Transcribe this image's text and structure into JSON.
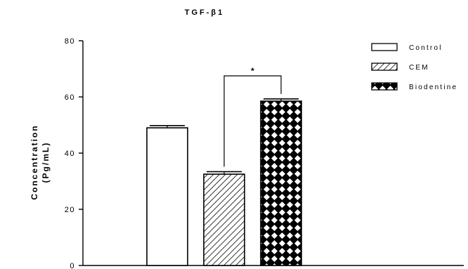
{
  "chart_data": {
    "type": "bar",
    "title": "TGF-β1",
    "ylabel_line1": "Concentration",
    "ylabel_line2": "(Pg/mL)",
    "xlabel": "",
    "ylim": [
      0,
      80
    ],
    "yticks": [
      "0",
      "20",
      "40",
      "60",
      "80"
    ],
    "legend_position": "top-right",
    "series": [
      {
        "name": "Control",
        "value": 49,
        "error": 0.8,
        "pattern": "hollow"
      },
      {
        "name": "CEM",
        "value": 32.5,
        "error": 0.9,
        "pattern": "diagonal-hatch"
      },
      {
        "name": "Biodentine",
        "value": 58.5,
        "error": 0.8,
        "pattern": "checker-diamond"
      }
    ],
    "significance": {
      "between": [
        "CEM",
        "Biodentine"
      ],
      "label": "*"
    }
  }
}
